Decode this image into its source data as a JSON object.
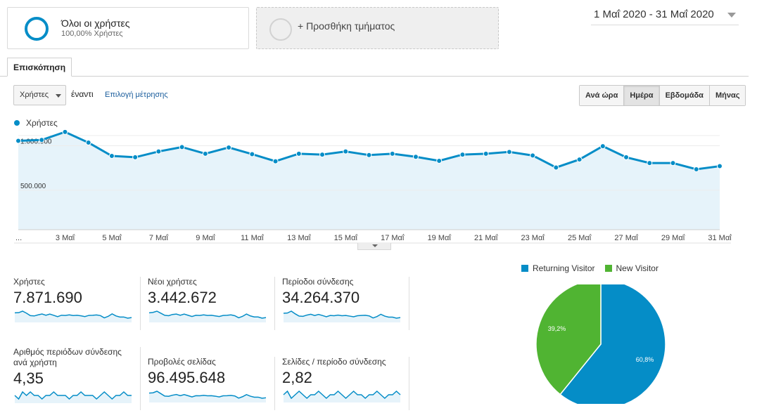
{
  "segment": {
    "title": "Όλοι οι χρήστες",
    "subtitle": "100,00% Χρήστες"
  },
  "add_segment": {
    "label": "+ Προσθήκη τμήματος"
  },
  "date_range": {
    "label": "1 Μαΐ 2020 - 31 Μαΐ 2020"
  },
  "tabs": {
    "overview": "Επισκόπηση"
  },
  "toolbar": {
    "metric": "Χρήστες",
    "vs": "έναντι",
    "choose_metric": "Επιλογή μέτρησης",
    "time_buttons": [
      "Ανά ώρα",
      "Ημέρα",
      "Εβδομάδα",
      "Μήνας"
    ],
    "active_time": "Ημέρα"
  },
  "colors": {
    "accent": "#058dc7",
    "area_fill": "#e6f3fa",
    "new_visitor": "#50b432",
    "link": "#1a5d9c"
  },
  "chart_data": {
    "type": "area",
    "series": [
      {
        "name": "Χρήστες",
        "values": [
          1000000,
          1010000,
          1100000,
          980000,
          830000,
          815000,
          880000,
          930000,
          855000,
          925000,
          850000,
          770000,
          855000,
          845000,
          880000,
          840000,
          855000,
          820000,
          775000,
          845000,
          855000,
          875000,
          835000,
          700000,
          790000,
          940000,
          815000,
          750000,
          750000,
          680000,
          715000
        ]
      }
    ],
    "x": [
      "1 Μαΐ",
      "2 Μαΐ",
      "3 Μαΐ",
      "4 Μαΐ",
      "5 Μαΐ",
      "6 Μαΐ",
      "7 Μαΐ",
      "8 Μαΐ",
      "9 Μαΐ",
      "10 Μαΐ",
      "11 Μαΐ",
      "12 Μαΐ",
      "13 Μαΐ",
      "14 Μαΐ",
      "15 Μαΐ",
      "16 Μαΐ",
      "17 Μαΐ",
      "18 Μαΐ",
      "19 Μαΐ",
      "20 Μαΐ",
      "21 Μαΐ",
      "22 Μαΐ",
      "23 Μαΐ",
      "24 Μαΐ",
      "25 Μαΐ",
      "26 Μαΐ",
      "27 Μαΐ",
      "28 Μαΐ",
      "29 Μαΐ",
      "30 Μαΐ",
      "31 Μαΐ"
    ],
    "x_tick_labels": [
      "...",
      "3 Μαΐ",
      "5 Μαΐ",
      "7 Μαΐ",
      "9 Μαΐ",
      "11 Μαΐ",
      "13 Μαΐ",
      "15 Μαΐ",
      "17 Μαΐ",
      "19 Μαΐ",
      "21 Μαΐ",
      "23 Μαΐ",
      "25 Μαΐ",
      "27 Μαΐ",
      "29 Μαΐ",
      "31 Μαΐ"
    ],
    "y_tick_labels": [
      "1.000.000",
      "500.000"
    ],
    "y_ticks": [
      1000000,
      500000
    ],
    "ylim": [
      0,
      1000000
    ],
    "grid": true
  },
  "stats": [
    {
      "label": "Χρήστες",
      "value": "7.871.690",
      "spark": [
        1000000,
        1010000,
        1100000,
        980000,
        830000,
        815000,
        880000,
        930000,
        855000,
        925000,
        850000,
        770000,
        855000,
        845000,
        880000,
        840000,
        855000,
        820000,
        775000,
        845000,
        855000,
        875000,
        835000,
        700000,
        790000,
        940000,
        815000,
        750000,
        750000,
        680000,
        715000
      ]
    },
    {
      "label": "Νέοι χρήστες",
      "value": "3.442.672",
      "spark": [
        460000,
        470000,
        500000,
        450000,
        400000,
        390000,
        420000,
        430000,
        400000,
        430000,
        400000,
        370000,
        400000,
        395000,
        410000,
        395000,
        400000,
        385000,
        370000,
        395000,
        400000,
        410000,
        390000,
        340000,
        375000,
        430000,
        385000,
        360000,
        360000,
        330000,
        345000
      ]
    },
    {
      "label": "Περίοδοι σύνδεσης",
      "value": "34.264.370",
      "spark": [
        1150000,
        1160000,
        1250000,
        1120000,
        1010000,
        1000000,
        1060000,
        1100000,
        1040000,
        1090000,
        1040000,
        980000,
        1040000,
        1030000,
        1060000,
        1030000,
        1040000,
        1010000,
        980000,
        1030000,
        1040000,
        1050000,
        1020000,
        920000,
        990000,
        1100000,
        1010000,
        960000,
        960000,
        910000,
        940000
      ]
    },
    {
      "label": "Αριθμός περιόδων σύνδεσης ανά χρήστη",
      "value": "4,35",
      "spark": [
        4.35,
        4.34,
        4.36,
        4.35,
        4.36,
        4.35,
        4.35,
        4.34,
        4.35,
        4.35,
        4.36,
        4.35,
        4.35,
        4.35,
        4.34,
        4.35,
        4.35,
        4.36,
        4.35,
        4.35,
        4.35,
        4.34,
        4.35,
        4.36,
        4.35,
        4.34,
        4.35,
        4.35,
        4.36,
        4.35,
        4.35
      ]
    },
    {
      "label": "Προβολές σελίδας",
      "value": "96.495.648",
      "spark": [
        3300000,
        3320000,
        3450000,
        3250000,
        3050000,
        3030000,
        3120000,
        3180000,
        3080000,
        3170000,
        3080000,
        2980000,
        3080000,
        3070000,
        3110000,
        3070000,
        3080000,
        3040000,
        2980000,
        3070000,
        3080000,
        3100000,
        3060000,
        2880000,
        3000000,
        3170000,
        3040000,
        2960000,
        2960000,
        2870000,
        2910000
      ]
    },
    {
      "label": "Σελίδες / περίοδο σύνδεσης",
      "value": "2,82",
      "spark": [
        2.82,
        2.83,
        2.81,
        2.82,
        2.83,
        2.82,
        2.81,
        2.82,
        2.82,
        2.83,
        2.82,
        2.81,
        2.82,
        2.82,
        2.83,
        2.82,
        2.81,
        2.82,
        2.83,
        2.82,
        2.82,
        2.81,
        2.82,
        2.82,
        2.83,
        2.82,
        2.81,
        2.82,
        2.82,
        2.83,
        2.82
      ]
    }
  ],
  "pie": {
    "slices": [
      {
        "name": "Returning Visitor",
        "value": 60.8,
        "label": "60,8%",
        "color": "#058dc7"
      },
      {
        "name": "New Visitor",
        "value": 39.2,
        "label": "39,2%",
        "color": "#50b432"
      }
    ]
  }
}
